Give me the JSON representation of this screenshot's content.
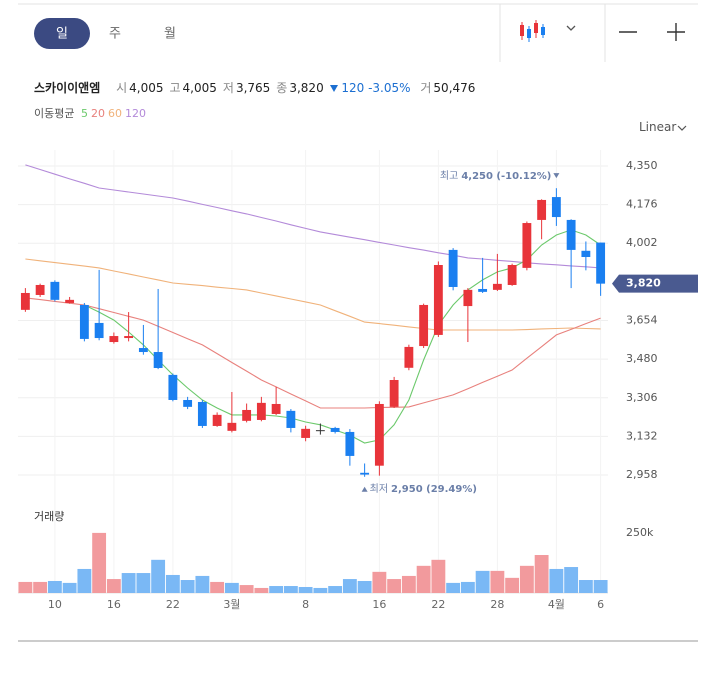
{
  "tabs": [
    "일",
    "주",
    "월"
  ],
  "scale_label": "Linear",
  "header": {
    "name": "스카이이앤엠",
    "fields": [
      {
        "label": "시",
        "value": "4,005"
      },
      {
        "label": "고",
        "value": "4,005"
      },
      {
        "label": "저",
        "value": "3,765"
      },
      {
        "label": "종",
        "value": "3,820"
      }
    ],
    "change": "120",
    "change_pct": "-3.05%",
    "volume_label": "거",
    "volume": "50,476"
  },
  "chart_data": {
    "type": "candlestick",
    "categories": [
      null,
      null,
      "10",
      null,
      null,
      null,
      "16",
      null,
      null,
      null,
      "22",
      null,
      null,
      null,
      "3월",
      null,
      null,
      null,
      null,
      "8",
      null,
      null,
      null,
      null,
      "16",
      null,
      null,
      null,
      "22",
      null,
      null,
      null,
      "28",
      null,
      null,
      null,
      "4월",
      null,
      null,
      "6"
    ],
    "open": [
      3702,
      3769,
      3828,
      3733,
      3724,
      3643,
      3557,
      3575,
      3530,
      3512,
      3409,
      3296,
      3287,
      3179,
      3157,
      3202,
      3206,
      3233,
      3247,
      3125,
      3160,
      3170,
      3152,
      2968,
      3000,
      3265,
      3441,
      3539,
      3589,
      3972,
      3719,
      3796,
      3792,
      3814,
      3891,
      4107,
      4210,
      4107,
      3968,
      4005
    ],
    "high": [
      3800,
      3820,
      3835,
      3760,
      3733,
      3882,
      3600,
      3692,
      3634,
      3796,
      3415,
      3310,
      3295,
      3240,
      3332,
      3280,
      3310,
      3355,
      3255,
      3180,
      3190,
      3175,
      3165,
      3010,
      3290,
      3400,
      3545,
      3730,
      3920,
      3980,
      3800,
      3936,
      3954,
      3910,
      4100,
      4200,
      4250,
      4110,
      4010,
      4005
    ],
    "low": [
      3693,
      3760,
      3740,
      3730,
      3560,
      3565,
      3550,
      3560,
      3500,
      3435,
      3290,
      3255,
      3170,
      3175,
      3150,
      3195,
      3200,
      3228,
      3150,
      3110,
      3140,
      3145,
      3000,
      2950,
      2955,
      3260,
      3430,
      3530,
      3580,
      3790,
      3557,
      3778,
      3787,
      3810,
      3880,
      4020,
      4080,
      3800,
      3880,
      3765
    ],
    "close": [
      3778,
      3814,
      3747,
      3747,
      3571,
      3575,
      3584,
      3584,
      3512,
      3440,
      3296,
      3265,
      3179,
      3229,
      3193,
      3251,
      3283,
      3278,
      3170,
      3166,
      3160,
      3152,
      3044,
      2960,
      3278,
      3386,
      3535,
      3724,
      3904,
      3805,
      3792,
      3783,
      3819,
      3904,
      4093,
      4197,
      4120,
      3972,
      3940,
      3820
    ],
    "up_color": "#e8343a",
    "down_color": "#1a7ff0",
    "flat_color": "#333333",
    "ylim": [
      2877,
      4422
    ],
    "yticks": [
      {
        "value": 4350,
        "label": "4,350"
      },
      {
        "value": 4176,
        "label": "4,176"
      },
      {
        "value": 4002,
        "label": "4,002"
      },
      {
        "value": 3654,
        "label": "3,654"
      },
      {
        "value": 3480,
        "label": "3,480"
      },
      {
        "value": 3306,
        "label": "3,306"
      },
      {
        "value": 3132,
        "label": "3,132"
      },
      {
        "value": 2958,
        "label": "2,958"
      }
    ],
    "grid": true,
    "last_price": {
      "value": 3820,
      "label": "3,820"
    },
    "annotations": [
      {
        "kind": "high",
        "prefix": "최고",
        "value": 4250,
        "label": "4,250 (-10.12%)"
      },
      {
        "kind": "low",
        "prefix": "최저",
        "value": 2950,
        "label": "2,950 (29.49%)"
      }
    ],
    "moving_averages": {
      "label": "이동평균",
      "series": [
        {
          "name": "5",
          "color": "#6cc96c",
          "values": [
            null,
            null,
            null,
            null,
            3724,
            3692,
            3656,
            3602,
            3544,
            3476,
            3409,
            3350,
            3296,
            3260,
            3229,
            3229,
            3229,
            3224,
            3215,
            3197,
            3184,
            3161,
            3138,
            3102,
            3116,
            3184,
            3296,
            3476,
            3634,
            3724,
            3792,
            3837,
            3873,
            3891,
            3927,
            3994,
            4039,
            4062,
            4039,
            3994
          ]
        },
        {
          "name": "20",
          "color": "#e8817d",
          "values": [
            3756,
            3748,
            3740,
            3732,
            3724,
            3707,
            3690,
            3673,
            3656,
            3628,
            3600,
            3572,
            3544,
            3505,
            3465,
            3426,
            3386,
            3355,
            3323,
            3292,
            3260,
            3260,
            3260,
            3260,
            3262,
            3263,
            3265,
            3283,
            3301,
            3319,
            3347,
            3375,
            3403,
            3431,
            3484,
            3536,
            3589,
            3614,
            3640,
            3665
          ]
        },
        {
          "name": "60",
          "color": "#f0b27a",
          "values": [
            3931,
            3923,
            3915,
            3907,
            3899,
            3891,
            3877,
            3864,
            3850,
            3837,
            3823,
            3817,
            3811,
            3804,
            3798,
            3792,
            3778,
            3765,
            3751,
            3738,
            3724,
            3698,
            3673,
            3647,
            3640,
            3633,
            3625,
            3618,
            3611,
            3611,
            3611,
            3611,
            3611,
            3611,
            3613,
            3616,
            3618,
            3620,
            3618,
            3616
          ]
        },
        {
          "name": "120",
          "color": "#b38ad9",
          "values": [
            4355,
            4334,
            4313,
            4292,
            4272,
            4251,
            4242,
            4233,
            4224,
            4215,
            4206,
            4192,
            4177,
            4163,
            4148,
            4134,
            4118,
            4102,
            4085,
            4069,
            4053,
            4041,
            4029,
            4018,
            4006,
            3994,
            3982,
            3971,
            3959,
            3948,
            3936,
            3931,
            3925,
            3920,
            3914,
            3909,
            3905,
            3900,
            3896,
            3891
          ]
        }
      ]
    },
    "volume": {
      "label": "거래량",
      "values": [
        46000,
        46000,
        50000,
        42000,
        100000,
        250000,
        58000,
        83000,
        83000,
        138000,
        75000,
        54000,
        71000,
        46000,
        42000,
        33000,
        21000,
        29000,
        29000,
        25000,
        21000,
        29000,
        58000,
        50000,
        88000,
        58000,
        71000,
        113000,
        138000,
        42000,
        46000,
        92000,
        92000,
        63000,
        113000,
        158000,
        100000,
        108000,
        54000,
        54000
      ],
      "up_color": "#f29a9d",
      "down_color": "#7ab8f5",
      "ylim": [
        0,
        366000
      ],
      "yticks": [
        {
          "value": 250000,
          "label": "250k"
        }
      ]
    }
  }
}
